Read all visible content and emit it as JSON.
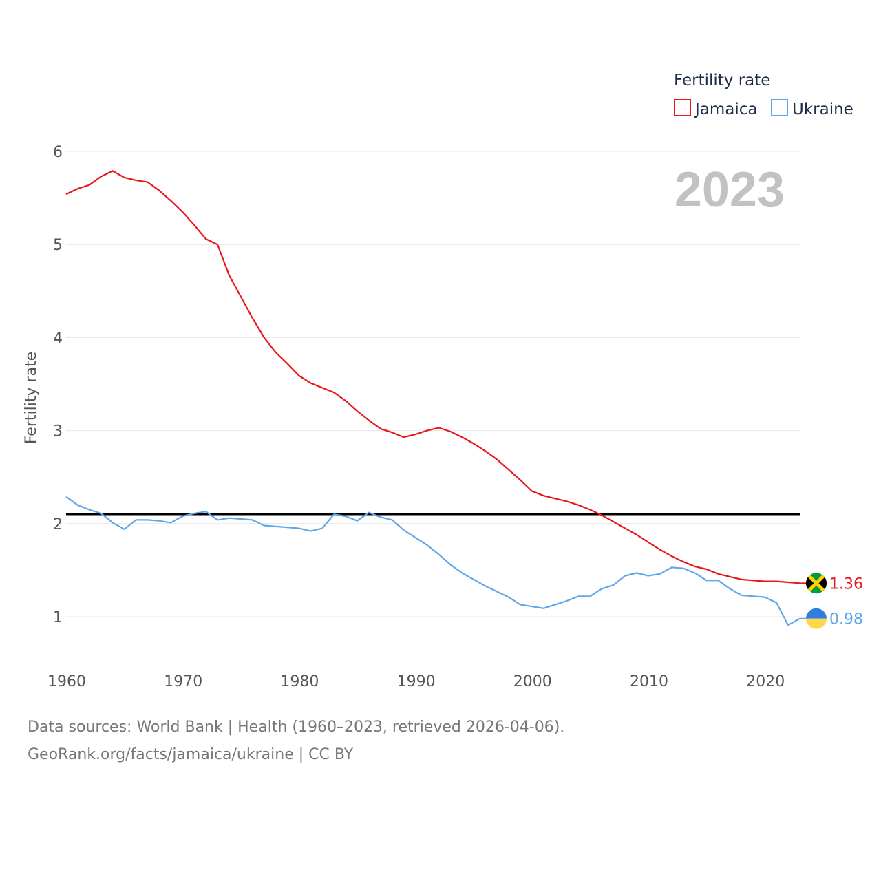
{
  "chart_data": {
    "type": "line",
    "title": "Fertility rate",
    "ylabel": "Fertility rate",
    "xlabel": "",
    "highlight_year": "2023",
    "xlim": [
      1960,
      2023
    ],
    "ylim": [
      0.5,
      6.2
    ],
    "x_ticks": [
      1960,
      1970,
      1980,
      1990,
      2000,
      2010,
      2020
    ],
    "y_ticks": [
      1,
      2,
      3,
      4,
      5,
      6
    ],
    "reference_line": {
      "value": 2.1,
      "color": "#000000"
    },
    "x": [
      1960,
      1961,
      1962,
      1963,
      1964,
      1965,
      1966,
      1967,
      1968,
      1969,
      1970,
      1971,
      1972,
      1973,
      1974,
      1975,
      1976,
      1977,
      1978,
      1979,
      1980,
      1981,
      1982,
      1983,
      1984,
      1985,
      1986,
      1987,
      1988,
      1989,
      1990,
      1991,
      1992,
      1993,
      1994,
      1995,
      1996,
      1997,
      1998,
      1999,
      2000,
      2001,
      2002,
      2003,
      2004,
      2005,
      2006,
      2007,
      2008,
      2009,
      2010,
      2011,
      2012,
      2013,
      2014,
      2015,
      2016,
      2017,
      2018,
      2019,
      2020,
      2021,
      2022,
      2023
    ],
    "series": [
      {
        "name": "Jamaica",
        "color": "#e8171e",
        "end_value_label": "1.36",
        "flag_icon": "jamaica-flag-icon",
        "values": [
          5.54,
          5.6,
          5.64,
          5.73,
          5.79,
          5.72,
          5.69,
          5.67,
          5.58,
          5.47,
          5.35,
          5.21,
          5.06,
          5.0,
          4.67,
          4.44,
          4.21,
          4.0,
          3.84,
          3.72,
          3.59,
          3.51,
          3.46,
          3.41,
          3.32,
          3.21,
          3.11,
          3.02,
          2.98,
          2.93,
          2.96,
          3.0,
          3.03,
          2.99,
          2.93,
          2.86,
          2.78,
          2.69,
          2.58,
          2.47,
          2.35,
          2.3,
          2.27,
          2.24,
          2.2,
          2.15,
          2.09,
          2.02,
          1.95,
          1.88,
          1.8,
          1.72,
          1.65,
          1.59,
          1.54,
          1.51,
          1.46,
          1.43,
          1.4,
          1.39,
          1.38,
          1.38,
          1.37,
          1.36
        ]
      },
      {
        "name": "Ukraine",
        "color": "#5fa7e8",
        "end_value_label": "0.98",
        "flag_icon": "ukraine-flag-icon",
        "values": [
          2.29,
          2.2,
          2.15,
          2.11,
          2.01,
          1.94,
          2.04,
          2.04,
          2.03,
          2.01,
          2.08,
          2.11,
          2.13,
          2.04,
          2.06,
          2.05,
          2.04,
          1.98,
          1.97,
          1.96,
          1.95,
          1.92,
          1.95,
          2.1,
          2.08,
          2.03,
          2.12,
          2.07,
          2.04,
          1.93,
          1.85,
          1.77,
          1.67,
          1.56,
          1.47,
          1.4,
          1.33,
          1.27,
          1.21,
          1.13,
          1.11,
          1.09,
          1.13,
          1.17,
          1.22,
          1.22,
          1.3,
          1.34,
          1.44,
          1.47,
          1.44,
          1.46,
          1.53,
          1.52,
          1.47,
          1.39,
          1.39,
          1.3,
          1.23,
          1.22,
          1.21,
          1.15,
          0.91,
          0.98
        ]
      }
    ]
  },
  "legend": {
    "title": "Fertility rate",
    "items": [
      "Jamaica",
      "Ukraine"
    ]
  },
  "footer": {
    "sources": "Data sources: World Bank | Health (1960–2023, retrieved 2026-04-06).",
    "credit": "GeoRank.org/facts/jamaica/ukraine | CC BY"
  }
}
